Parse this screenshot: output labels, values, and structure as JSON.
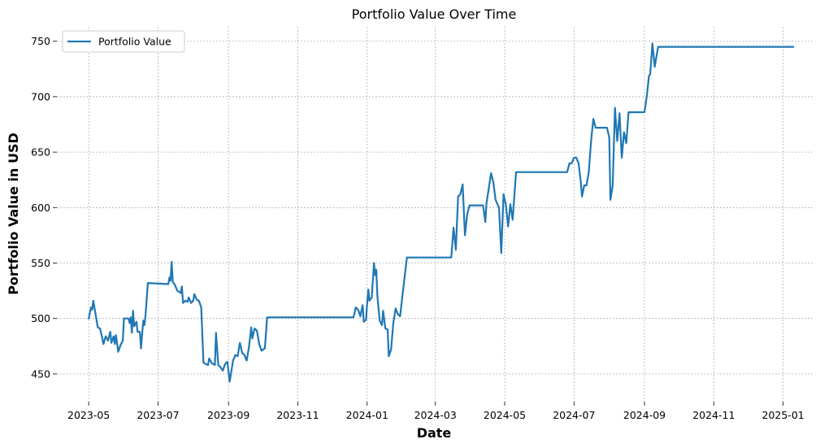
{
  "chart_data": {
    "type": "line",
    "title": "Portfolio Value Over Time",
    "xlabel": "Date",
    "ylabel": "Portfolio Value in USD",
    "xlim": [
      "2023-04-03",
      "2025-01-27"
    ],
    "ylim": [
      425,
      763
    ],
    "grid": true,
    "legend_placement": "upper-left",
    "line_color": "#1f77b4",
    "x_ticks": [
      "2023-05",
      "2023-07",
      "2023-09",
      "2023-11",
      "2024-01",
      "2024-03",
      "2024-05",
      "2024-07",
      "2024-09",
      "2024-11",
      "2025-01"
    ],
    "y_ticks": [
      450,
      500,
      550,
      600,
      650,
      700,
      750
    ],
    "series": [
      {
        "name": "Portfolio Value",
        "points": [
          [
            "2023-05-01",
            500
          ],
          [
            "2023-05-02",
            505
          ],
          [
            "2023-05-03",
            510
          ],
          [
            "2023-05-04",
            508
          ],
          [
            "2023-05-05",
            516
          ],
          [
            "2023-05-06",
            510
          ],
          [
            "2023-05-08",
            498
          ],
          [
            "2023-05-09",
            492
          ],
          [
            "2023-05-11",
            491
          ],
          [
            "2023-05-13",
            482
          ],
          [
            "2023-05-14",
            477
          ],
          [
            "2023-05-16",
            484
          ],
          [
            "2023-05-18",
            480
          ],
          [
            "2023-05-20",
            488
          ],
          [
            "2023-05-21",
            478
          ],
          [
            "2023-05-23",
            484
          ],
          [
            "2023-05-24",
            477
          ],
          [
            "2023-05-25",
            485
          ],
          [
            "2023-05-27",
            470
          ],
          [
            "2023-05-29",
            476
          ],
          [
            "2023-05-31",
            480
          ],
          [
            "2023-06-01",
            500
          ],
          [
            "2023-06-05",
            500
          ],
          [
            "2023-06-06",
            496
          ],
          [
            "2023-06-07",
            501
          ],
          [
            "2023-06-08",
            487
          ],
          [
            "2023-06-09",
            507
          ],
          [
            "2023-06-10",
            493
          ],
          [
            "2023-06-12",
            497
          ],
          [
            "2023-06-13",
            488
          ],
          [
            "2023-06-15",
            488
          ],
          [
            "2023-06-16",
            473
          ],
          [
            "2023-06-18",
            498
          ],
          [
            "2023-06-19",
            494
          ],
          [
            "2023-06-20",
            503
          ],
          [
            "2023-06-22",
            532
          ],
          [
            "2023-07-10",
            531
          ],
          [
            "2023-07-11",
            537
          ],
          [
            "2023-07-12",
            534
          ],
          [
            "2023-07-13",
            551
          ],
          [
            "2023-07-14",
            533
          ],
          [
            "2023-07-16",
            530
          ],
          [
            "2023-07-18",
            525
          ],
          [
            "2023-07-21",
            523
          ],
          [
            "2023-07-22",
            529
          ],
          [
            "2023-07-23",
            514
          ],
          [
            "2023-07-25",
            516
          ],
          [
            "2023-07-27",
            515
          ],
          [
            "2023-07-28",
            519
          ],
          [
            "2023-07-30",
            514
          ],
          [
            "2023-08-01",
            516
          ],
          [
            "2023-08-02",
            522
          ],
          [
            "2023-08-04",
            517
          ],
          [
            "2023-08-06",
            516
          ],
          [
            "2023-08-08",
            510
          ],
          [
            "2023-08-09",
            485
          ],
          [
            "2023-08-10",
            460
          ],
          [
            "2023-08-12",
            459
          ],
          [
            "2023-08-14",
            458
          ],
          [
            "2023-08-15",
            464
          ],
          [
            "2023-08-17",
            460
          ],
          [
            "2023-08-20",
            458
          ],
          [
            "2023-08-21",
            487
          ],
          [
            "2023-08-23",
            458
          ],
          [
            "2023-08-25",
            456
          ],
          [
            "2023-08-27",
            453
          ],
          [
            "2023-08-29",
            459
          ],
          [
            "2023-08-31",
            461
          ],
          [
            "2023-09-02",
            443
          ],
          [
            "2023-09-05",
            462
          ],
          [
            "2023-09-07",
            467
          ],
          [
            "2023-09-09",
            466
          ],
          [
            "2023-09-11",
            478
          ],
          [
            "2023-09-13",
            469
          ],
          [
            "2023-09-15",
            467
          ],
          [
            "2023-09-17",
            462
          ],
          [
            "2023-09-19",
            474
          ],
          [
            "2023-09-21",
            492
          ],
          [
            "2023-09-22",
            482
          ],
          [
            "2023-09-24",
            491
          ],
          [
            "2023-09-26",
            489
          ],
          [
            "2023-09-28",
            477
          ],
          [
            "2023-09-30",
            471
          ],
          [
            "2023-10-03",
            473
          ],
          [
            "2023-10-05",
            501
          ],
          [
            "2023-12-20",
            501
          ],
          [
            "2023-12-22",
            510
          ],
          [
            "2023-12-24",
            508
          ],
          [
            "2023-12-26",
            502
          ],
          [
            "2023-12-28",
            512
          ],
          [
            "2023-12-29",
            497
          ],
          [
            "2023-12-31",
            499
          ],
          [
            "2024-01-01",
            514
          ],
          [
            "2024-01-02",
            526
          ],
          [
            "2024-01-03",
            516
          ],
          [
            "2024-01-05",
            519
          ],
          [
            "2024-01-07",
            550
          ],
          [
            "2024-01-08",
            539
          ],
          [
            "2024-01-09",
            544
          ],
          [
            "2024-01-10",
            520
          ],
          [
            "2024-01-12",
            498
          ],
          [
            "2024-01-14",
            494
          ],
          [
            "2024-01-15",
            507
          ],
          [
            "2024-01-17",
            491
          ],
          [
            "2024-01-19",
            490
          ],
          [
            "2024-01-20",
            466
          ],
          [
            "2024-01-22",
            472
          ],
          [
            "2024-01-24",
            496
          ],
          [
            "2024-01-26",
            509
          ],
          [
            "2024-01-28",
            504
          ],
          [
            "2024-01-30",
            502
          ],
          [
            "2024-02-01",
            520
          ],
          [
            "2024-02-05",
            555
          ],
          [
            "2024-03-15",
            555
          ],
          [
            "2024-03-17",
            582
          ],
          [
            "2024-03-19",
            562
          ],
          [
            "2024-03-21",
            610
          ],
          [
            "2024-03-23",
            612
          ],
          [
            "2024-03-25",
            621
          ],
          [
            "2024-03-27",
            575
          ],
          [
            "2024-03-29",
            594
          ],
          [
            "2024-03-31",
            602
          ],
          [
            "2024-04-12",
            602
          ],
          [
            "2024-04-14",
            587
          ],
          [
            "2024-04-15",
            604
          ],
          [
            "2024-04-17",
            617
          ],
          [
            "2024-04-19",
            631
          ],
          [
            "2024-04-21",
            623
          ],
          [
            "2024-04-23",
            607
          ],
          [
            "2024-04-26",
            600
          ],
          [
            "2024-04-28",
            559
          ],
          [
            "2024-04-30",
            612
          ],
          [
            "2024-05-02",
            603
          ],
          [
            "2024-05-04",
            583
          ],
          [
            "2024-05-06",
            603
          ],
          [
            "2024-05-08",
            589
          ],
          [
            "2024-05-11",
            632
          ],
          [
            "2024-06-25",
            632
          ],
          [
            "2024-06-27",
            640
          ],
          [
            "2024-06-29",
            640
          ],
          [
            "2024-07-01",
            645
          ],
          [
            "2024-07-03",
            645
          ],
          [
            "2024-07-05",
            640
          ],
          [
            "2024-07-07",
            623
          ],
          [
            "2024-07-08",
            610
          ],
          [
            "2024-07-10",
            620
          ],
          [
            "2024-07-12",
            620
          ],
          [
            "2024-07-14",
            632
          ],
          [
            "2024-07-16",
            660
          ],
          [
            "2024-07-18",
            680
          ],
          [
            "2024-07-20",
            672
          ],
          [
            "2024-07-30",
            672
          ],
          [
            "2024-08-01",
            663
          ],
          [
            "2024-08-02",
            607
          ],
          [
            "2024-08-04",
            620
          ],
          [
            "2024-08-06",
            690
          ],
          [
            "2024-08-08",
            660
          ],
          [
            "2024-08-10",
            685
          ],
          [
            "2024-08-12",
            645
          ],
          [
            "2024-08-14",
            668
          ],
          [
            "2024-08-16",
            658
          ],
          [
            "2024-08-18",
            686
          ],
          [
            "2024-09-01",
            686
          ],
          [
            "2024-09-03",
            700
          ],
          [
            "2024-09-05",
            719
          ],
          [
            "2024-09-06",
            720
          ],
          [
            "2024-09-08",
            748
          ],
          [
            "2024-09-10",
            727
          ],
          [
            "2024-09-13",
            745
          ],
          [
            "2025-01-10",
            745
          ]
        ]
      }
    ]
  }
}
